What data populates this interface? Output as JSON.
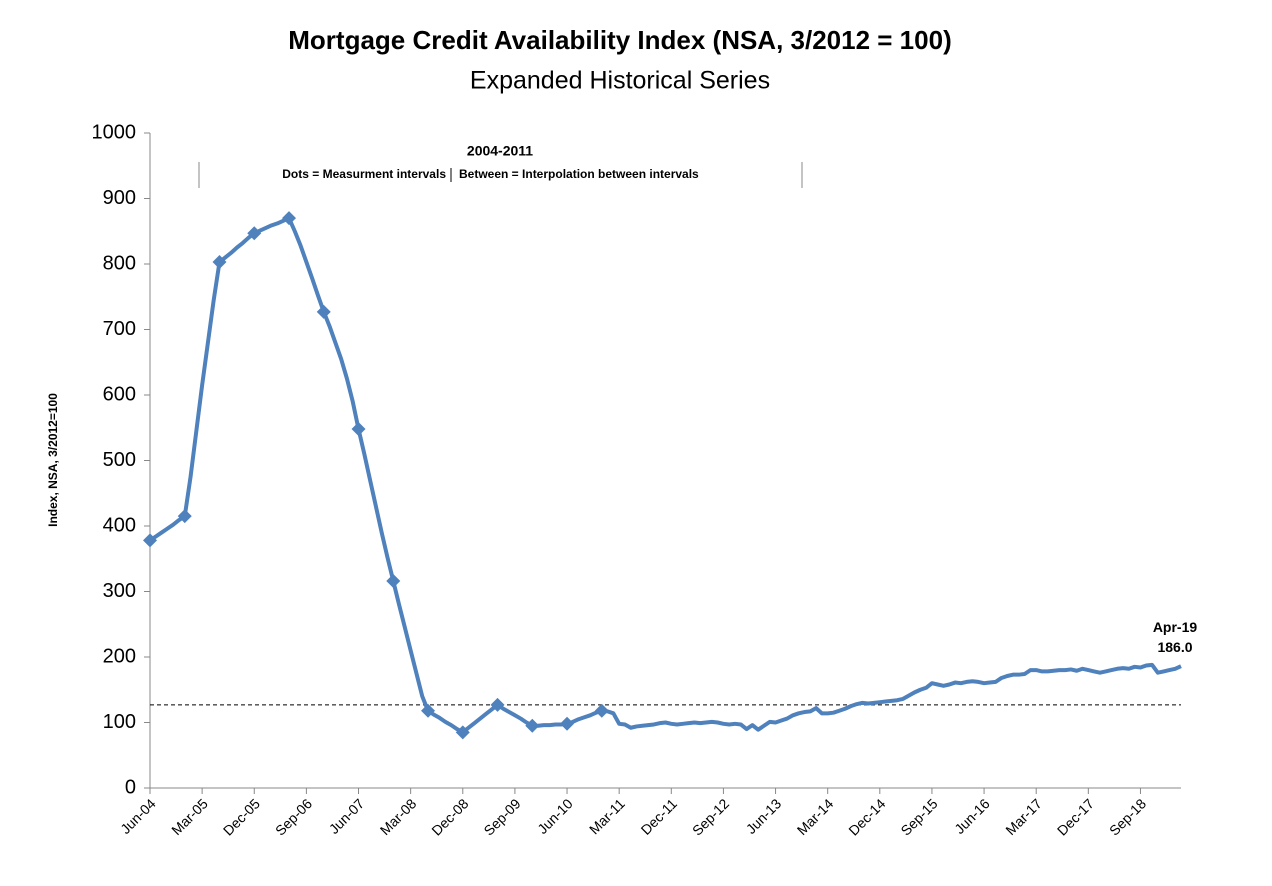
{
  "chart_data": {
    "type": "line",
    "title": "Mortgage Credit Availability Index (NSA, 3/2012 = 100)",
    "subtitle": "Expanded Historical Series",
    "y_label": "Index, NSA, 3/2012=100",
    "annotation_title": "2004-2011",
    "categories": [
      "Jun-04",
      null,
      null,
      null,
      null,
      null,
      null,
      null,
      null,
      "Mar-05",
      null,
      null,
      null,
      null,
      null,
      null,
      null,
      null,
      "Dec-05",
      null,
      null,
      null,
      null,
      null,
      null,
      null,
      null,
      "Sep-06",
      null,
      null,
      null,
      null,
      null,
      null,
      null,
      null,
      "Jun-07",
      null,
      null,
      null,
      null,
      null,
      null,
      null,
      null,
      "Mar-08",
      null,
      null,
      null,
      null,
      null,
      null,
      null,
      null,
      "Dec-08",
      null,
      null,
      null,
      null,
      null,
      null,
      null,
      null,
      "Sep-09",
      null,
      null,
      null,
      null,
      null,
      null,
      null,
      null,
      "Jun-10",
      null,
      null,
      null,
      null,
      null,
      null,
      null,
      null,
      "Mar-11",
      null,
      null,
      null,
      null,
      null,
      null,
      null,
      null,
      "Dec-11",
      null,
      null,
      null,
      null,
      null,
      null,
      null,
      null,
      "Sep-12",
      null,
      null,
      null,
      null,
      null,
      null,
      null,
      null,
      "Jun-13",
      null,
      null,
      null,
      null,
      null,
      null,
      null,
      null,
      "Mar-14",
      null,
      null,
      null,
      null,
      null,
      null,
      null,
      null,
      "Dec-14",
      null,
      null,
      null,
      null,
      null,
      null,
      null,
      null,
      "Sep-15",
      null,
      null,
      null,
      null,
      null,
      null,
      null,
      null,
      "Jun-16",
      null,
      null,
      null,
      null,
      null,
      null,
      null,
      null,
      "Mar-17",
      null,
      null,
      null,
      null,
      null,
      null,
      null,
      null,
      "Dec-17",
      null,
      null,
      null,
      null,
      null,
      null,
      null,
      null,
      "Sep-18",
      null,
      null,
      null,
      null,
      null,
      null,
      null
    ],
    "series": [
      {
        "name": "Dots = Measurment intervals",
        "color": "#4f81bd",
        "style": "markers",
        "values": [
          378,
          null,
          null,
          null,
          null,
          null,
          415,
          null,
          null,
          null,
          null,
          null,
          803,
          null,
          null,
          null,
          null,
          null,
          847,
          null,
          null,
          null,
          null,
          null,
          870,
          null,
          null,
          null,
          null,
          null,
          727,
          null,
          null,
          null,
          null,
          null,
          548,
          null,
          null,
          null,
          null,
          null,
          316,
          null,
          null,
          null,
          null,
          null,
          118,
          null,
          null,
          null,
          null,
          null,
          85,
          null,
          null,
          null,
          null,
          null,
          127,
          null,
          null,
          null,
          null,
          null,
          95,
          null,
          null,
          null,
          null,
          null,
          98,
          null,
          null,
          null,
          null,
          null,
          118,
          null,
          null,
          null,
          null,
          null,
          null,
          null,
          null,
          null,
          null,
          null,
          null,
          null,
          null,
          null,
          null,
          null,
          null,
          null,
          null,
          null,
          null,
          null,
          null,
          null,
          null,
          null,
          null,
          null,
          null,
          null,
          null,
          null,
          null,
          null,
          null,
          null,
          null,
          null,
          null,
          null,
          null,
          null,
          null,
          null,
          null,
          null,
          null,
          null,
          null,
          null,
          null,
          null,
          null,
          null,
          null,
          null,
          null,
          null,
          null,
          null,
          null,
          null,
          null,
          null,
          null,
          null,
          null,
          null,
          null,
          null,
          null,
          null,
          null,
          null,
          null,
          null,
          null,
          null,
          null,
          null,
          null,
          null,
          null,
          null,
          null,
          null,
          null,
          null,
          null,
          null,
          null,
          null,
          null,
          null,
          null,
          null,
          null,
          null,
          null
        ]
      },
      {
        "name": "Between = Interpolation between intervals",
        "color": "#4f81bd",
        "style": "line",
        "last_category_label": "Apr-19",
        "last_value_label": "186.0",
        "values": [
          378,
          384,
          390,
          396,
          402,
          409,
          415,
          475,
          545,
          615,
          680,
          745,
          803,
          810,
          817,
          825,
          832,
          840,
          847,
          851,
          855,
          859,
          862,
          866,
          870,
          850,
          828,
          803,
          778,
          752,
          727,
          705,
          680,
          655,
          625,
          590,
          548,
          510,
          470,
          430,
          390,
          352,
          316,
          280,
          245,
          210,
          175,
          140,
          118,
          112,
          107,
          101,
          96,
          90,
          85,
          92,
          99,
          106,
          113,
          120,
          127,
          121,
          116,
          111,
          106,
          100,
          95,
          95,
          96,
          96,
          97,
          97,
          98,
          101,
          105,
          108,
          111,
          115,
          118,
          117,
          114,
          98,
          97,
          92,
          94,
          95,
          96,
          97,
          99,
          100,
          98,
          97,
          98,
          99,
          100,
          99,
          100,
          101,
          100,
          98,
          97,
          98,
          97,
          90,
          96,
          89,
          95,
          101,
          100,
          103,
          106,
          111,
          114,
          116,
          117,
          122,
          114,
          114,
          115,
          118,
          121,
          125,
          128,
          130,
          129,
          130,
          131,
          132,
          133,
          134,
          136,
          141,
          146,
          150,
          153,
          160,
          158,
          156,
          158,
          161,
          160,
          162,
          163,
          162,
          160,
          161,
          162,
          168,
          171,
          173,
          173,
          174,
          180,
          180,
          178,
          178,
          179,
          180,
          180,
          181,
          179,
          182,
          180,
          178,
          176,
          178,
          180,
          182,
          183,
          182,
          185,
          184,
          187,
          188,
          176,
          178,
          180,
          182,
          186
        ]
      }
    ],
    "reference_line": 127,
    "ylim": [
      0,
      1000
    ],
    "yticks": [
      0,
      100,
      200,
      300,
      400,
      500,
      600,
      700,
      800,
      900,
      1000
    ],
    "grid": false
  }
}
